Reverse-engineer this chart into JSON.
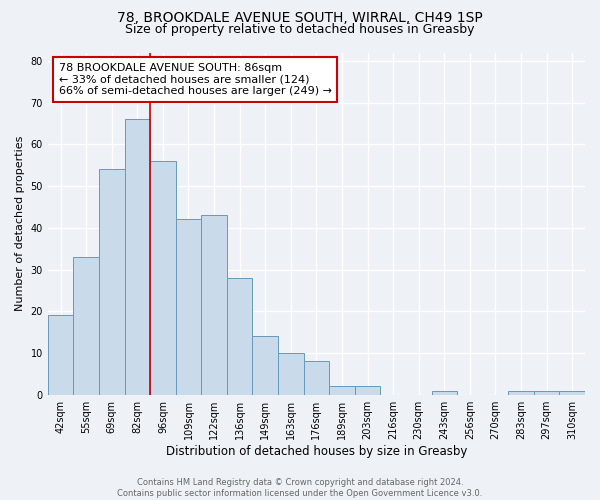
{
  "title1": "78, BROOKDALE AVENUE SOUTH, WIRRAL, CH49 1SP",
  "title2": "Size of property relative to detached houses in Greasby",
  "xlabel": "Distribution of detached houses by size in Greasby",
  "ylabel": "Number of detached properties",
  "bar_labels": [
    "42sqm",
    "55sqm",
    "69sqm",
    "82sqm",
    "96sqm",
    "109sqm",
    "122sqm",
    "136sqm",
    "149sqm",
    "163sqm",
    "176sqm",
    "189sqm",
    "203sqm",
    "216sqm",
    "230sqm",
    "243sqm",
    "256sqm",
    "270sqm",
    "283sqm",
    "297sqm",
    "310sqm"
  ],
  "bar_values": [
    19,
    33,
    54,
    66,
    56,
    42,
    43,
    28,
    14,
    10,
    8,
    2,
    2,
    0,
    0,
    1,
    0,
    0,
    1,
    1,
    1
  ],
  "bar_color": "#c9daea",
  "bar_edge_color": "#6699bb",
  "background_color": "#eef2f7",
  "vline_x": 3.5,
  "vline_color": "#cc0000",
  "annotation_text": "78 BROOKDALE AVENUE SOUTH: 86sqm\n← 33% of detached houses are smaller (124)\n66% of semi-detached houses are larger (249) →",
  "annotation_box_color": "#ffffff",
  "annotation_box_edge": "#cc0000",
  "ylim": [
    0,
    82
  ],
  "yticks": [
    0,
    10,
    20,
    30,
    40,
    50,
    60,
    70,
    80
  ],
  "footer1": "Contains HM Land Registry data © Crown copyright and database right 2024.",
  "footer2": "Contains public sector information licensed under the Open Government Licence v3.0.",
  "title1_fontsize": 10,
  "title2_fontsize": 9,
  "xlabel_fontsize": 8.5,
  "ylabel_fontsize": 8,
  "tick_fontsize": 7,
  "annotation_fontsize": 8,
  "footer_fontsize": 6
}
